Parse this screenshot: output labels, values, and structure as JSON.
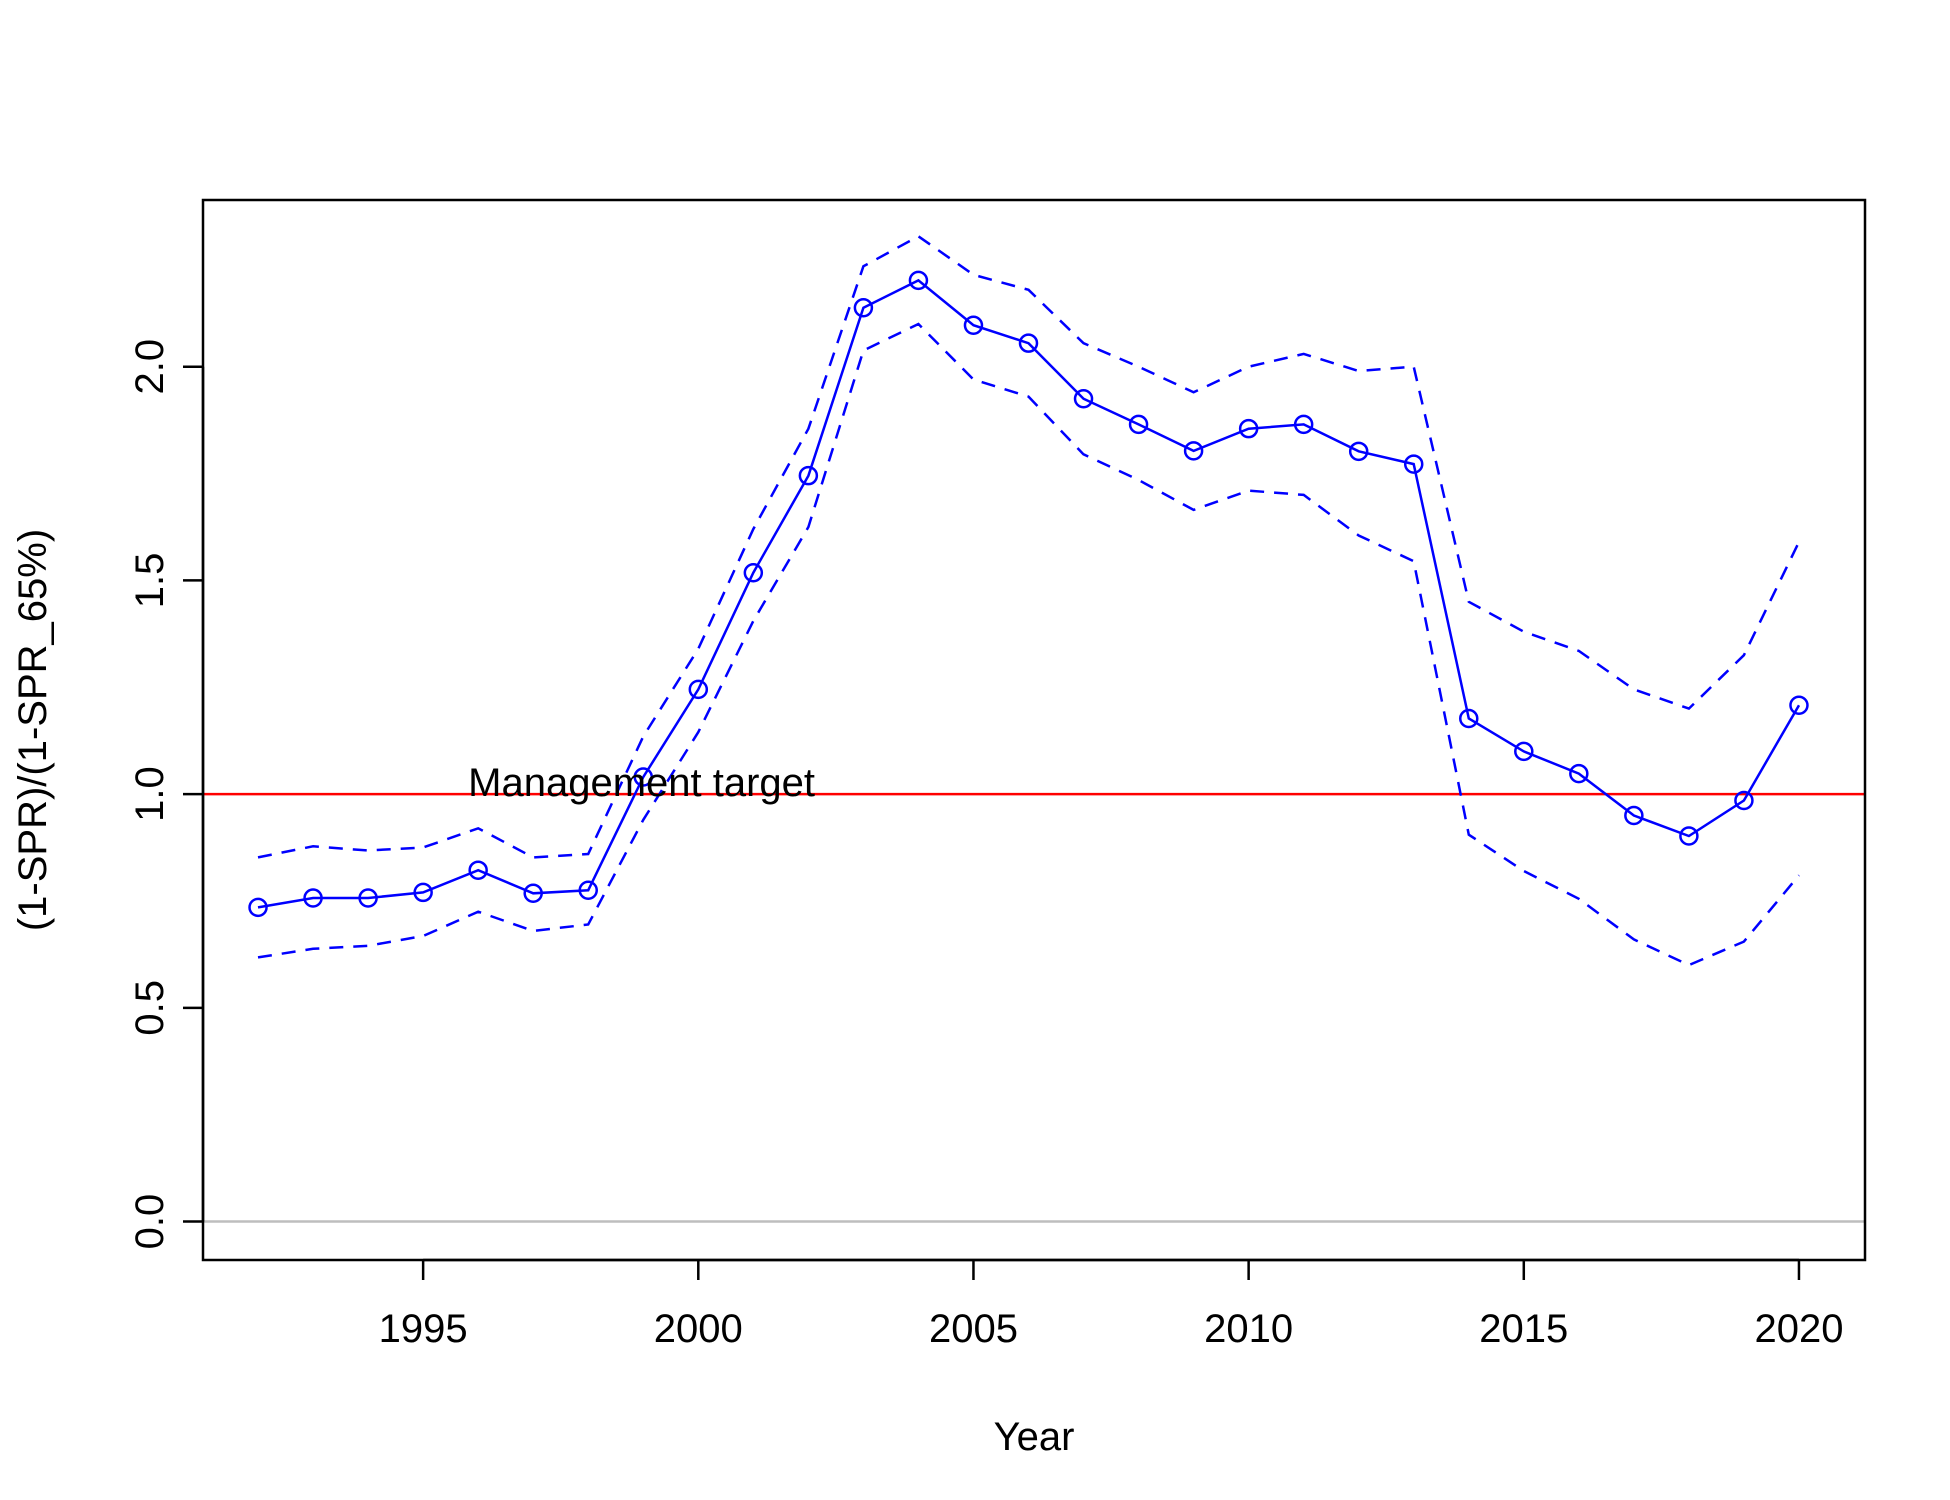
{
  "chart_data": {
    "type": "line",
    "title": "",
    "xlabel": "Year",
    "ylabel": "(1-SPR)/(1-SPR_65%)",
    "xlim": [
      1991,
      2021.2
    ],
    "ylim": [
      -0.09,
      2.39
    ],
    "x_ticks": [
      1995,
      2000,
      2005,
      2010,
      2015,
      2020
    ],
    "y_ticks": [
      0.0,
      0.5,
      1.0,
      1.5,
      2.0
    ],
    "grid": false,
    "legend": "none",
    "x": [
      1992,
      1993,
      1994,
      1995,
      1996,
      1997,
      1998,
      1999,
      2000,
      2001,
      2002,
      2003,
      2004,
      2005,
      2006,
      2007,
      2008,
      2009,
      2010,
      2011,
      2012,
      2013,
      2014,
      2015,
      2016,
      2017,
      2018,
      2019,
      2020
    ],
    "series": [
      {
        "role": "estimate",
        "color": "#0000ff",
        "style": "solid-with-circles",
        "values": [
          0.735,
          0.757,
          0.757,
          0.77,
          0.822,
          0.768,
          0.775,
          1.04,
          1.245,
          1.518,
          1.745,
          2.138,
          2.202,
          2.097,
          2.055,
          1.925,
          1.865,
          1.803,
          1.855,
          1.865,
          1.802,
          1.772,
          1.177,
          1.1,
          1.048,
          0.95,
          0.902,
          0.985,
          1.208
        ]
      },
      {
        "role": "upper-bound",
        "color": "#0000ff",
        "style": "dashed",
        "values": [
          0.852,
          0.878,
          0.868,
          0.875,
          0.92,
          0.852,
          0.86,
          1.135,
          1.34,
          1.62,
          1.855,
          2.235,
          2.305,
          2.215,
          2.18,
          2.055,
          2.0,
          1.94,
          2.0,
          2.03,
          1.99,
          2.0,
          1.45,
          1.38,
          1.335,
          1.245,
          1.2,
          1.325,
          1.59
        ]
      },
      {
        "role": "lower-bound",
        "color": "#0000ff",
        "style": "dashed",
        "values": [
          0.618,
          0.638,
          0.645,
          0.668,
          0.725,
          0.68,
          0.695,
          0.94,
          1.145,
          1.405,
          1.625,
          2.038,
          2.1,
          1.97,
          1.93,
          1.795,
          1.735,
          1.665,
          1.71,
          1.7,
          1.605,
          1.545,
          0.905,
          0.82,
          0.755,
          0.66,
          0.6,
          0.655,
          0.81
        ]
      }
    ],
    "reference_lines": [
      {
        "y": 1.0,
        "color": "#ff0000"
      },
      {
        "y": 0.0,
        "color": "#bebebe"
      }
    ],
    "annotations": [
      {
        "text": "Management target",
        "x": 1996,
        "y": 1.0
      }
    ]
  }
}
